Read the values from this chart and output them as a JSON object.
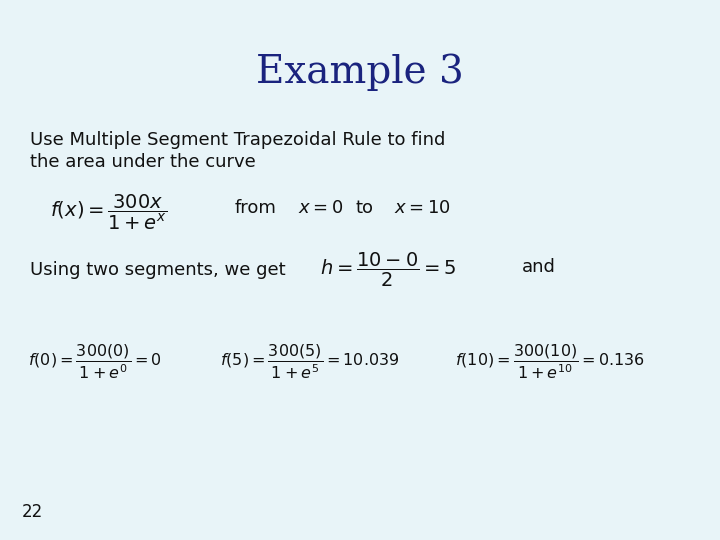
{
  "background_color": "#e8f4f8",
  "title": "Example 3",
  "title_color": "#1a237e",
  "title_fontsize": 28,
  "body_color": "#111111",
  "page_number": "22",
  "text_line1": "Use Multiple Segment Trapezoidal Rule to find",
  "text_line2": "the area under the curve",
  "text_fontsize": 13,
  "math_fontsize": 13,
  "small_math_fontsize": 11
}
